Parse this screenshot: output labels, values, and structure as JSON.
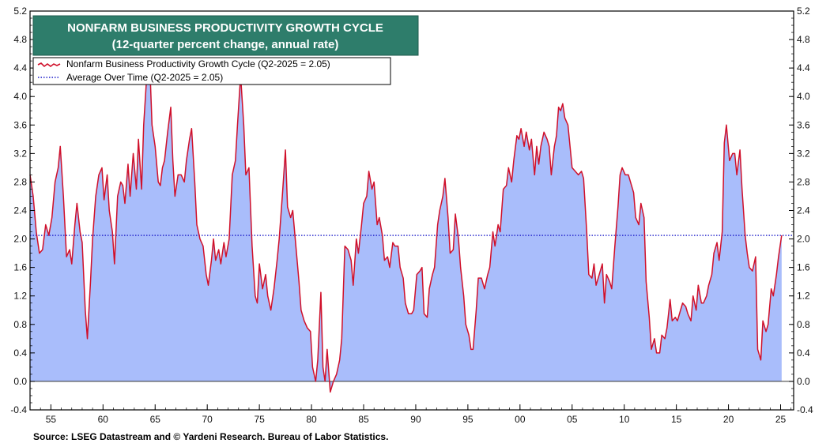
{
  "chart_data": {
    "type": "area",
    "title": "NONFARM BUSINESS PRODUCTIVITY GROWTH CYCLE",
    "subtitle": "(12-quarter percent change, annual rate)",
    "legend": [
      {
        "label": "Nonfarm Business Productivity Growth Cycle (Q2-2025 = 2.05)",
        "style": "red-line-blue-fill"
      },
      {
        "label": "Average Over Time (Q2-2025 = 2.05)",
        "style": "blue-dotted"
      }
    ],
    "legend_position": "top-left",
    "source": "Source: LSEG Datastream and © Yardeni Research. Bureau of Labor Statistics.",
    "ylim": [
      -0.4,
      5.2
    ],
    "yticks": [
      5.2,
      4.8,
      4.4,
      4.0,
      3.6,
      3.2,
      2.8,
      2.4,
      2.0,
      1.6,
      1.2,
      0.8,
      0.4,
      0.0,
      -0.4
    ],
    "ytick_labels": [
      "5.2",
      "4.8",
      "4.4",
      "4.0",
      "3.6",
      "3.2",
      "2.8",
      "2.4",
      "2.0",
      "1.6",
      "1.2",
      "0.8",
      "0.4",
      "0.0",
      "-0.4"
    ],
    "xlim": [
      1953.0,
      2026.25
    ],
    "xticks": [
      1955,
      1960,
      1965,
      1970,
      1975,
      1980,
      1985,
      1990,
      1995,
      2000,
      2005,
      2010,
      2015,
      2020,
      2025
    ],
    "xtick_labels": [
      "55",
      "60",
      "65",
      "70",
      "75",
      "80",
      "85",
      "90",
      "95",
      "00",
      "05",
      "10",
      "15",
      "20",
      "25"
    ],
    "average": 2.05,
    "series": [
      {
        "name": "Nonfarm Business Productivity Growth Cycle",
        "color": "#d0102a",
        "fill": "#a9bdfb",
        "points": [
          [
            1953.0,
            2.9
          ],
          [
            1953.3,
            2.6
          ],
          [
            1953.6,
            2.1
          ],
          [
            1953.9,
            1.8
          ],
          [
            1954.2,
            1.85
          ],
          [
            1954.5,
            2.2
          ],
          [
            1954.8,
            2.05
          ],
          [
            1955.1,
            2.3
          ],
          [
            1955.4,
            2.8
          ],
          [
            1955.7,
            3.0
          ],
          [
            1955.9,
            3.3
          ],
          [
            1956.2,
            2.6
          ],
          [
            1956.5,
            1.75
          ],
          [
            1956.8,
            1.85
          ],
          [
            1957.0,
            1.65
          ],
          [
            1957.3,
            2.2
          ],
          [
            1957.5,
            2.5
          ],
          [
            1957.8,
            2.1
          ],
          [
            1958.0,
            1.95
          ],
          [
            1958.3,
            1.0
          ],
          [
            1958.5,
            0.6
          ],
          [
            1958.8,
            1.4
          ],
          [
            1959.0,
            2.0
          ],
          [
            1959.3,
            2.6
          ],
          [
            1959.6,
            2.9
          ],
          [
            1959.9,
            3.0
          ],
          [
            1960.1,
            2.55
          ],
          [
            1960.4,
            2.9
          ],
          [
            1960.6,
            2.4
          ],
          [
            1960.9,
            2.1
          ],
          [
            1961.1,
            1.65
          ],
          [
            1961.4,
            2.6
          ],
          [
            1961.7,
            2.8
          ],
          [
            1961.9,
            2.75
          ],
          [
            1962.1,
            2.5
          ],
          [
            1962.4,
            3.05
          ],
          [
            1962.6,
            2.6
          ],
          [
            1962.9,
            3.2
          ],
          [
            1963.2,
            2.7
          ],
          [
            1963.4,
            3.4
          ],
          [
            1963.7,
            2.7
          ],
          [
            1963.9,
            3.6
          ],
          [
            1964.2,
            4.3
          ],
          [
            1964.5,
            4.4
          ],
          [
            1964.7,
            3.6
          ],
          [
            1965.0,
            3.3
          ],
          [
            1965.3,
            2.8
          ],
          [
            1965.5,
            2.75
          ],
          [
            1965.7,
            3.0
          ],
          [
            1965.9,
            3.1
          ],
          [
            1966.2,
            3.5
          ],
          [
            1966.5,
            3.85
          ],
          [
            1966.7,
            3.1
          ],
          [
            1966.9,
            2.6
          ],
          [
            1967.2,
            2.9
          ],
          [
            1967.5,
            2.9
          ],
          [
            1967.8,
            2.8
          ],
          [
            1968.0,
            3.1
          ],
          [
            1968.3,
            3.4
          ],
          [
            1968.5,
            3.55
          ],
          [
            1968.8,
            2.8
          ],
          [
            1969.0,
            2.2
          ],
          [
            1969.3,
            2.0
          ],
          [
            1969.6,
            1.9
          ],
          [
            1969.9,
            1.5
          ],
          [
            1970.1,
            1.35
          ],
          [
            1970.4,
            1.7
          ],
          [
            1970.6,
            2.0
          ],
          [
            1970.8,
            1.7
          ],
          [
            1971.1,
            1.85
          ],
          [
            1971.3,
            1.65
          ],
          [
            1971.6,
            1.95
          ],
          [
            1971.8,
            1.75
          ],
          [
            1972.1,
            2.0
          ],
          [
            1972.4,
            2.9
          ],
          [
            1972.7,
            3.1
          ],
          [
            1972.9,
            3.6
          ],
          [
            1973.2,
            4.3
          ],
          [
            1973.5,
            3.6
          ],
          [
            1973.7,
            2.9
          ],
          [
            1974.0,
            3.0
          ],
          [
            1974.3,
            1.9
          ],
          [
            1974.6,
            1.2
          ],
          [
            1974.8,
            1.1
          ],
          [
            1975.0,
            1.65
          ],
          [
            1975.3,
            1.3
          ],
          [
            1975.6,
            1.5
          ],
          [
            1975.8,
            1.2
          ],
          [
            1976.1,
            1.0
          ],
          [
            1976.4,
            1.3
          ],
          [
            1976.7,
            1.7
          ],
          [
            1976.9,
            2.0
          ],
          [
            1977.2,
            2.6
          ],
          [
            1977.5,
            3.25
          ],
          [
            1977.7,
            2.45
          ],
          [
            1978.0,
            2.3
          ],
          [
            1978.2,
            2.4
          ],
          [
            1978.5,
            1.9
          ],
          [
            1978.8,
            1.4
          ],
          [
            1979.0,
            1.0
          ],
          [
            1979.3,
            0.85
          ],
          [
            1979.6,
            0.75
          ],
          [
            1979.9,
            0.7
          ],
          [
            1980.1,
            0.2
          ],
          [
            1980.4,
            0.0
          ],
          [
            1980.6,
            0.3
          ],
          [
            1980.9,
            1.25
          ],
          [
            1981.1,
            0.2
          ],
          [
            1981.3,
            0.0
          ],
          [
            1981.5,
            0.45
          ],
          [
            1981.8,
            -0.15
          ],
          [
            1982.1,
            0.0
          ],
          [
            1982.4,
            0.1
          ],
          [
            1982.7,
            0.3
          ],
          [
            1982.9,
            0.6
          ],
          [
            1983.2,
            1.9
          ],
          [
            1983.5,
            1.85
          ],
          [
            1983.8,
            1.7
          ],
          [
            1984.0,
            1.35
          ],
          [
            1984.3,
            2.0
          ],
          [
            1984.5,
            1.8
          ],
          [
            1984.8,
            2.2
          ],
          [
            1985.0,
            2.5
          ],
          [
            1985.3,
            2.6
          ],
          [
            1985.5,
            2.95
          ],
          [
            1985.8,
            2.7
          ],
          [
            1986.0,
            2.8
          ],
          [
            1986.3,
            2.2
          ],
          [
            1986.5,
            2.3
          ],
          [
            1986.8,
            2.05
          ],
          [
            1987.0,
            1.7
          ],
          [
            1987.3,
            1.75
          ],
          [
            1987.5,
            1.6
          ],
          [
            1987.8,
            1.95
          ],
          [
            1988.0,
            1.9
          ],
          [
            1988.3,
            1.9
          ],
          [
            1988.5,
            1.6
          ],
          [
            1988.8,
            1.45
          ],
          [
            1989.0,
            1.1
          ],
          [
            1989.3,
            0.95
          ],
          [
            1989.6,
            0.95
          ],
          [
            1989.8,
            1.0
          ],
          [
            1990.1,
            1.5
          ],
          [
            1990.4,
            1.55
          ],
          [
            1990.6,
            1.6
          ],
          [
            1990.8,
            0.95
          ],
          [
            1991.1,
            0.9
          ],
          [
            1991.3,
            1.3
          ],
          [
            1991.6,
            1.5
          ],
          [
            1991.8,
            1.6
          ],
          [
            1992.1,
            2.2
          ],
          [
            1992.3,
            2.4
          ],
          [
            1992.6,
            2.6
          ],
          [
            1992.8,
            2.85
          ],
          [
            1993.1,
            2.3
          ],
          [
            1993.3,
            1.8
          ],
          [
            1993.6,
            1.85
          ],
          [
            1993.8,
            2.35
          ],
          [
            1994.1,
            2.0
          ],
          [
            1994.3,
            1.6
          ],
          [
            1994.6,
            1.2
          ],
          [
            1994.8,
            0.8
          ],
          [
            1995.1,
            0.65
          ],
          [
            1995.3,
            0.45
          ],
          [
            1995.5,
            0.45
          ],
          [
            1995.8,
            1.0
          ],
          [
            1996.0,
            1.45
          ],
          [
            1996.3,
            1.45
          ],
          [
            1996.6,
            1.3
          ],
          [
            1996.9,
            1.5
          ],
          [
            1997.1,
            1.6
          ],
          [
            1997.4,
            2.1
          ],
          [
            1997.6,
            1.9
          ],
          [
            1997.9,
            2.2
          ],
          [
            1998.1,
            2.1
          ],
          [
            1998.4,
            2.7
          ],
          [
            1998.7,
            2.75
          ],
          [
            1998.9,
            3.0
          ],
          [
            1999.2,
            2.8
          ],
          [
            1999.4,
            3.1
          ],
          [
            1999.7,
            3.45
          ],
          [
            1999.9,
            3.4
          ],
          [
            2000.1,
            3.55
          ],
          [
            2000.4,
            3.3
          ],
          [
            2000.6,
            3.5
          ],
          [
            2000.9,
            3.25
          ],
          [
            2001.1,
            3.4
          ],
          [
            2001.4,
            2.9
          ],
          [
            2001.6,
            3.3
          ],
          [
            2001.8,
            3.05
          ],
          [
            2002.0,
            3.3
          ],
          [
            2002.3,
            3.5
          ],
          [
            2002.6,
            3.4
          ],
          [
            2002.8,
            3.3
          ],
          [
            2003.0,
            2.9
          ],
          [
            2003.3,
            3.3
          ],
          [
            2003.5,
            3.45
          ],
          [
            2003.7,
            3.85
          ],
          [
            2003.9,
            3.8
          ],
          [
            2004.1,
            3.9
          ],
          [
            2004.3,
            3.7
          ],
          [
            2004.6,
            3.6
          ],
          [
            2004.8,
            3.3
          ],
          [
            2005.0,
            3.0
          ],
          [
            2005.3,
            2.95
          ],
          [
            2005.6,
            2.9
          ],
          [
            2005.9,
            2.95
          ],
          [
            2006.1,
            2.85
          ],
          [
            2006.4,
            2.1
          ],
          [
            2006.6,
            1.5
          ],
          [
            2006.9,
            1.45
          ],
          [
            2007.1,
            1.65
          ],
          [
            2007.3,
            1.35
          ],
          [
            2007.6,
            1.5
          ],
          [
            2007.9,
            1.65
          ],
          [
            2008.1,
            1.1
          ],
          [
            2008.3,
            1.5
          ],
          [
            2008.6,
            1.4
          ],
          [
            2008.8,
            1.3
          ],
          [
            2009.1,
            1.9
          ],
          [
            2009.4,
            2.45
          ],
          [
            2009.6,
            2.9
          ],
          [
            2009.8,
            3.0
          ],
          [
            2010.1,
            2.9
          ],
          [
            2010.4,
            2.9
          ],
          [
            2010.6,
            2.8
          ],
          [
            2010.9,
            2.65
          ],
          [
            2011.1,
            2.3
          ],
          [
            2011.4,
            2.2
          ],
          [
            2011.6,
            2.5
          ],
          [
            2011.9,
            2.3
          ],
          [
            2012.1,
            1.4
          ],
          [
            2012.4,
            0.9
          ],
          [
            2012.6,
            0.45
          ],
          [
            2012.9,
            0.6
          ],
          [
            2013.1,
            0.4
          ],
          [
            2013.4,
            0.4
          ],
          [
            2013.6,
            0.65
          ],
          [
            2013.9,
            0.6
          ],
          [
            2014.1,
            0.75
          ],
          [
            2014.4,
            1.15
          ],
          [
            2014.6,
            0.85
          ],
          [
            2014.9,
            0.9
          ],
          [
            2015.1,
            0.85
          ],
          [
            2015.4,
            1.0
          ],
          [
            2015.6,
            1.1
          ],
          [
            2015.9,
            1.05
          ],
          [
            2016.1,
            0.95
          ],
          [
            2016.4,
            0.85
          ],
          [
            2016.6,
            1.2
          ],
          [
            2016.9,
            1.0
          ],
          [
            2017.1,
            1.35
          ],
          [
            2017.4,
            1.1
          ],
          [
            2017.6,
            1.1
          ],
          [
            2017.9,
            1.2
          ],
          [
            2018.1,
            1.35
          ],
          [
            2018.4,
            1.5
          ],
          [
            2018.6,
            1.8
          ],
          [
            2018.9,
            1.95
          ],
          [
            2019.1,
            1.7
          ],
          [
            2019.4,
            2.1
          ],
          [
            2019.6,
            3.35
          ],
          [
            2019.8,
            3.6
          ],
          [
            2020.1,
            3.1
          ],
          [
            2020.4,
            3.2
          ],
          [
            2020.6,
            3.2
          ],
          [
            2020.8,
            2.9
          ],
          [
            2021.1,
            3.25
          ],
          [
            2021.3,
            2.7
          ],
          [
            2021.6,
            2.05
          ],
          [
            2021.8,
            1.8
          ],
          [
            2022.0,
            1.6
          ],
          [
            2022.3,
            1.55
          ],
          [
            2022.6,
            1.75
          ],
          [
            2022.8,
            0.45
          ],
          [
            2023.1,
            0.3
          ],
          [
            2023.3,
            0.85
          ],
          [
            2023.6,
            0.7
          ],
          [
            2023.8,
            0.8
          ],
          [
            2024.1,
            1.3
          ],
          [
            2024.3,
            1.2
          ],
          [
            2024.6,
            1.5
          ],
          [
            2024.8,
            1.75
          ],
          [
            2025.1,
            2.05
          ]
        ]
      }
    ]
  }
}
